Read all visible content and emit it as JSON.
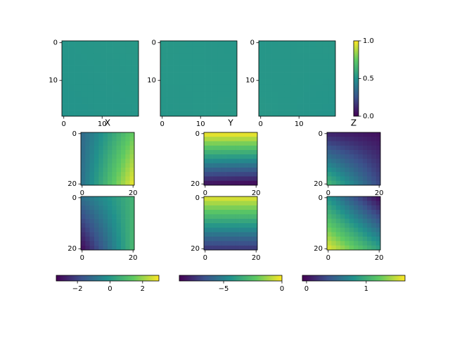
{
  "chart_data": [
    {
      "type": "heatmap",
      "corners": [
        0.52,
        0.53,
        0.51,
        0.52
      ],
      "colorbar": 9,
      "xlim": [
        -0.5,
        19.5
      ],
      "ylim": [
        19.5,
        -0.5
      ],
      "xticks": [
        0,
        10
      ],
      "yticks": [
        0,
        10
      ]
    },
    {
      "type": "heatmap",
      "corners": [
        0.53,
        0.52,
        0.52,
        0.53
      ],
      "colorbar": 9,
      "xlim": [
        -0.5,
        19.5
      ],
      "ylim": [
        19.5,
        -0.5
      ],
      "xticks": [
        0,
        10
      ],
      "yticks": [
        0,
        10
      ]
    },
    {
      "type": "heatmap",
      "corners": [
        0.52,
        0.53,
        0.53,
        0.51
      ],
      "colorbar": 9,
      "xlim": [
        -0.5,
        19.5
      ],
      "ylim": [
        19.5,
        -0.5
      ],
      "xticks": [
        0,
        10
      ],
      "yticks": [
        0,
        10
      ]
    },
    {
      "type": "heatmap",
      "title": "X",
      "corners": [
        -1.2,
        1.5,
        -1.0,
        2.9
      ],
      "colorbar": 10,
      "xlim": [
        -0.5,
        20.5
      ],
      "ylim": [
        20.5,
        -0.5
      ],
      "xticks": [
        0,
        20
      ],
      "yticks": [
        0,
        20
      ]
    },
    {
      "type": "heatmap",
      "title": "Y",
      "corners": [
        0,
        0,
        -8.5,
        -8.8
      ],
      "colorbar": 11,
      "xlim": [
        -0.5,
        20.5
      ],
      "ylim": [
        20.5,
        -0.5
      ],
      "xticks": [
        0,
        20
      ],
      "yticks": [
        0,
        20
      ]
    },
    {
      "type": "heatmap",
      "title": "Z",
      "corners": [
        0.1,
        0,
        1.1,
        0.3
      ],
      "colorbar": 12,
      "xlim": [
        -0.5,
        20.5
      ],
      "ylim": [
        20.5,
        -0.5
      ],
      "xticks": [
        0,
        20
      ],
      "yticks": [
        0,
        20
      ]
    },
    {
      "type": "heatmap",
      "corners": [
        -1.0,
        0.8,
        -3.2,
        1.0
      ],
      "colorbar": 10,
      "xlim": [
        -0.5,
        20.5
      ],
      "ylim": [
        20.5,
        -0.5
      ],
      "xticks": [
        0,
        20
      ],
      "yticks": [
        0,
        20
      ]
    },
    {
      "type": "heatmap",
      "corners": [
        -0.3,
        -0.3,
        -7.5,
        -7.5
      ],
      "colorbar": 11,
      "xlim": [
        -0.5,
        20.5
      ],
      "ylim": [
        20.5,
        -0.5
      ],
      "xticks": [
        0,
        20
      ],
      "yticks": [
        0,
        20
      ]
    },
    {
      "type": "heatmap",
      "corners": [
        0.8,
        -0.05,
        1.6,
        0.9
      ],
      "colorbar": 12,
      "xlim": [
        -0.5,
        20.5
      ],
      "ylim": [
        20.5,
        -0.5
      ],
      "xticks": [
        0,
        20
      ],
      "yticks": [
        0,
        20
      ]
    },
    {
      "type": "colorbar",
      "orientation": "vertical",
      "ylim": [
        0,
        1
      ],
      "yticks": [
        {
          "value": 0,
          "label": "0.0"
        },
        {
          "value": 0.5,
          "label": "0.5"
        },
        {
          "value": 1,
          "label": "1.0"
        }
      ]
    },
    {
      "type": "colorbar",
      "orientation": "horizontal",
      "xlim": [
        -3.3,
        3.0
      ],
      "xticks": [
        {
          "value": -2,
          "label": "−2"
        },
        0,
        2
      ]
    },
    {
      "type": "colorbar",
      "orientation": "horizontal",
      "xlim": [
        -8.8,
        0
      ],
      "xticks": [
        {
          "value": -5,
          "label": "−5"
        },
        0
      ]
    },
    {
      "type": "colorbar",
      "orientation": "horizontal",
      "xlim": [
        -0.07,
        1.65
      ],
      "xticks": [
        0,
        1
      ]
    }
  ]
}
